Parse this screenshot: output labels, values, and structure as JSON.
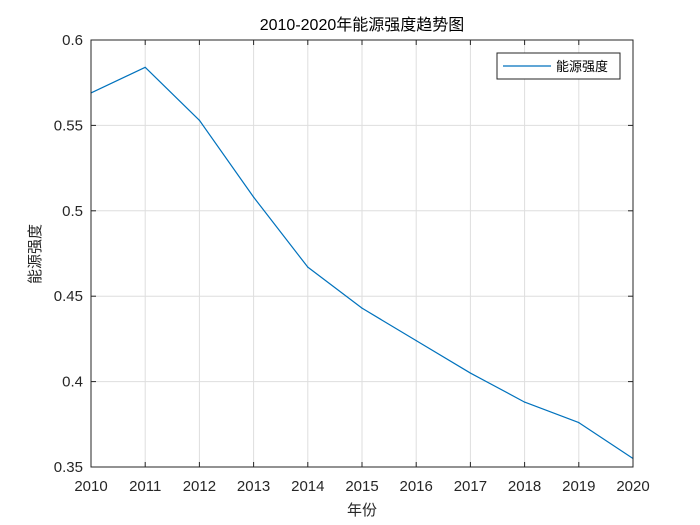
{
  "chart_data": {
    "type": "line",
    "title": "2010-2020年能源强度趋势图",
    "xlabel": "年份",
    "ylabel": "能源强度",
    "x": [
      2010,
      2011,
      2012,
      2013,
      2014,
      2015,
      2016,
      2017,
      2018,
      2019,
      2020
    ],
    "xlim": [
      2010,
      2020
    ],
    "ylim": [
      0.35,
      0.6
    ],
    "x_ticks": [
      "2010",
      "2011",
      "2012",
      "2013",
      "2014",
      "2015",
      "2016",
      "2017",
      "2018",
      "2019",
      "2020"
    ],
    "y_ticks": [
      "0.35",
      "0.4",
      "0.45",
      "0.5",
      "0.55",
      "0.6"
    ],
    "grid": true,
    "legend_position": "top-right",
    "series": [
      {
        "name": "能源强度",
        "color": "#0072BD",
        "values": [
          0.569,
          0.584,
          0.553,
          0.508,
          0.467,
          0.443,
          0.424,
          0.405,
          0.388,
          0.376,
          0.355
        ]
      }
    ]
  }
}
